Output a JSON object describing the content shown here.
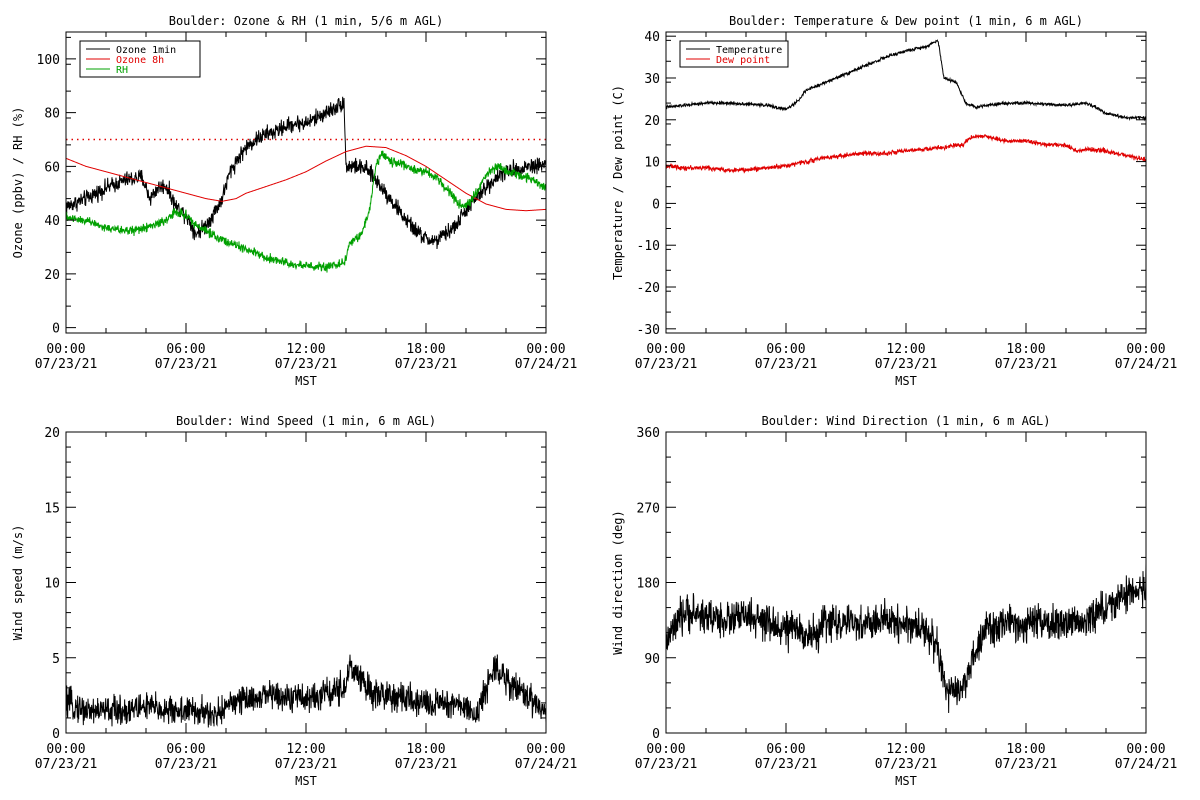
{
  "chart_data": [
    {
      "type": "line",
      "title": "Boulder: Ozone & RH (1 min, 5/6 m AGL)",
      "xlabel": "MST",
      "ylabel": "Ozone (ppbv) / RH (%)",
      "x_ticks": [
        {
          "time": "00:00",
          "date": "07/23/21"
        },
        {
          "time": "06:00",
          "date": "07/23/21"
        },
        {
          "time": "12:00",
          "date": "07/23/21"
        },
        {
          "time": "18:00",
          "date": "07/23/21"
        },
        {
          "time": "00:00",
          "date": "07/24/21"
        }
      ],
      "xlim_hours": [
        0,
        24
      ],
      "ylim": [
        -2,
        110
      ],
      "y_ticks": [
        0,
        20,
        40,
        60,
        80,
        100
      ],
      "legend_position": "top-left",
      "threshold_line": {
        "value": 70,
        "color": "#e00000",
        "style": "dotted"
      },
      "series": [
        {
          "name": "Ozone 1min",
          "color": "#000000",
          "noise": 2.8,
          "points": [
            [
              0,
              45
            ],
            [
              1,
              48
            ],
            [
              2,
              52
            ],
            [
              3,
              55
            ],
            [
              3.8,
              56
            ],
            [
              4.2,
              48
            ],
            [
              4.6,
              52
            ],
            [
              5,
              53
            ],
            [
              5.5,
              45
            ],
            [
              6,
              42
            ],
            [
              6.5,
              35
            ],
            [
              7,
              38
            ],
            [
              7.5,
              44
            ],
            [
              7.8,
              48
            ],
            [
              8.2,
              58
            ],
            [
              8.6,
              63
            ],
            [
              9,
              67
            ],
            [
              9.5,
              70
            ],
            [
              10,
              72
            ],
            [
              10.5,
              73
            ],
            [
              11,
              75
            ],
            [
              11.5,
              76
            ],
            [
              12,
              76
            ],
            [
              12.5,
              78
            ],
            [
              13,
              80
            ],
            [
              13.5,
              82
            ],
            [
              13.9,
              84
            ],
            [
              14,
              60
            ],
            [
              14.5,
              60
            ],
            [
              15,
              59
            ],
            [
              15.5,
              55
            ],
            [
              16,
              50
            ],
            [
              16.5,
              45
            ],
            [
              17,
              40
            ],
            [
              17.5,
              36
            ],
            [
              18,
              33
            ],
            [
              18.5,
              32
            ],
            [
              19,
              35
            ],
            [
              19.5,
              38
            ],
            [
              20,
              44
            ],
            [
              20.5,
              48
            ],
            [
              21,
              52
            ],
            [
              21.5,
              56
            ],
            [
              22,
              58
            ],
            [
              22.5,
              59
            ],
            [
              23,
              60
            ],
            [
              24,
              61
            ]
          ]
        },
        {
          "name": "Ozone 8h",
          "color": "#e00000",
          "noise": 0,
          "points": [
            [
              0,
              63
            ],
            [
              1,
              60
            ],
            [
              2,
              58
            ],
            [
              3,
              56
            ],
            [
              4,
              54
            ],
            [
              5,
              52
            ],
            [
              6,
              50
            ],
            [
              7,
              48
            ],
            [
              7.8,
              47
            ],
            [
              8.5,
              48
            ],
            [
              9,
              50
            ],
            [
              10,
              52.5
            ],
            [
              11,
              55
            ],
            [
              12,
              58
            ],
            [
              13,
              62
            ],
            [
              14,
              65.5
            ],
            [
              15,
              67.5
            ],
            [
              16,
              67
            ],
            [
              17,
              64
            ],
            [
              18,
              60
            ],
            [
              19,
              55
            ],
            [
              20,
              50
            ],
            [
              21,
              46
            ],
            [
              22,
              44
            ],
            [
              23,
              43.5
            ],
            [
              24,
              44
            ]
          ]
        },
        {
          "name": "RH",
          "color": "#00a000",
          "noise": 1.6,
          "points": [
            [
              0,
              41
            ],
            [
              1,
              40
            ],
            [
              2,
              37
            ],
            [
              3,
              36
            ],
            [
              4,
              37
            ],
            [
              5,
              40
            ],
            [
              5.5,
              43
            ],
            [
              6,
              42
            ],
            [
              6.5,
              38
            ],
            [
              7,
              36
            ],
            [
              7.5,
              34
            ],
            [
              8,
              32
            ],
            [
              9,
              29
            ],
            [
              10,
              26
            ],
            [
              11,
              24
            ],
            [
              12,
              23
            ],
            [
              13,
              22.5
            ],
            [
              13.9,
              24
            ],
            [
              14.2,
              32
            ],
            [
              14.8,
              35
            ],
            [
              15.2,
              45
            ],
            [
              15.5,
              60
            ],
            [
              15.8,
              65
            ],
            [
              16.2,
              62
            ],
            [
              17,
              60
            ],
            [
              18,
              58
            ],
            [
              18.5,
              56
            ],
            [
              19,
              52
            ],
            [
              19.5,
              47
            ],
            [
              20,
              45
            ],
            [
              20.5,
              50
            ],
            [
              21,
              57
            ],
            [
              21.5,
              60
            ],
            [
              22,
              59
            ],
            [
              22.5,
              57
            ],
            [
              23,
              56
            ],
            [
              24,
              52
            ]
          ]
        }
      ]
    },
    {
      "type": "line",
      "title": "Boulder: Temperature & Dew point (1 min, 6 m AGL)",
      "xlabel": "MST",
      "ylabel": "Temperature / Dew point (C)",
      "x_ticks": [
        {
          "time": "00:00",
          "date": "07/23/21"
        },
        {
          "time": "06:00",
          "date": "07/23/21"
        },
        {
          "time": "12:00",
          "date": "07/23/21"
        },
        {
          "time": "18:00",
          "date": "07/23/21"
        },
        {
          "time": "00:00",
          "date": "07/24/21"
        }
      ],
      "xlim_hours": [
        0,
        24
      ],
      "ylim": [
        -31,
        41
      ],
      "y_ticks": [
        -30,
        -20,
        -10,
        0,
        10,
        20,
        30,
        40
      ],
      "legend_position": "top-left",
      "series": [
        {
          "name": "Temperature",
          "color": "#000000",
          "noise": 0.35,
          "points": [
            [
              0,
              23
            ],
            [
              1,
              23.5
            ],
            [
              2,
              24
            ],
            [
              3,
              24
            ],
            [
              4,
              23.8
            ],
            [
              5,
              23.5
            ],
            [
              6,
              22.5
            ],
            [
              6.5,
              24
            ],
            [
              7,
              27
            ],
            [
              7.5,
              28
            ],
            [
              8,
              29
            ],
            [
              9,
              31
            ],
            [
              10,
              33
            ],
            [
              11,
              35
            ],
            [
              12,
              36.5
            ],
            [
              13,
              37.5
            ],
            [
              13.6,
              39
            ],
            [
              13.9,
              30
            ],
            [
              14.5,
              29
            ],
            [
              15,
              24
            ],
            [
              15.5,
              23
            ],
            [
              16,
              23.5
            ],
            [
              17,
              24
            ],
            [
              18,
              24
            ],
            [
              19,
              23.8
            ],
            [
              20,
              23.5
            ],
            [
              21,
              24
            ],
            [
              21.5,
              23
            ],
            [
              22,
              21.5
            ],
            [
              23,
              20.5
            ],
            [
              24,
              20.5
            ]
          ]
        },
        {
          "name": "Dew point",
          "color": "#e00000",
          "noise": 0.5,
          "points": [
            [
              0,
              9
            ],
            [
              1,
              8.5
            ],
            [
              2,
              8.5
            ],
            [
              3,
              8
            ],
            [
              4,
              8
            ],
            [
              5,
              8.5
            ],
            [
              6,
              9
            ],
            [
              7,
              10
            ],
            [
              8,
              11
            ],
            [
              9,
              11.5
            ],
            [
              10,
              12
            ],
            [
              11,
              12
            ],
            [
              12,
              12.5
            ],
            [
              13,
              13
            ],
            [
              14,
              13.5
            ],
            [
              14.8,
              14
            ],
            [
              15.3,
              16
            ],
            [
              16,
              16
            ],
            [
              17,
              15
            ],
            [
              18,
              15
            ],
            [
              19,
              14
            ],
            [
              20,
              14
            ],
            [
              20.5,
              12.5
            ],
            [
              21,
              13
            ],
            [
              22,
              12.5
            ],
            [
              23,
              11.5
            ],
            [
              24,
              10.5
            ]
          ]
        }
      ]
    },
    {
      "type": "line",
      "title": "Boulder: Wind Speed (1 min, 6 m AGL)",
      "xlabel": "MST",
      "ylabel": "Wind speed (m/s)",
      "x_ticks": [
        {
          "time": "00:00",
          "date": "07/23/21"
        },
        {
          "time": "06:00",
          "date": "07/23/21"
        },
        {
          "time": "12:00",
          "date": "07/23/21"
        },
        {
          "time": "18:00",
          "date": "07/23/21"
        },
        {
          "time": "00:00",
          "date": "07/24/21"
        }
      ],
      "xlim_hours": [
        0,
        24
      ],
      "ylim": [
        0,
        20
      ],
      "y_ticks": [
        0,
        5,
        10,
        15,
        20
      ],
      "series": [
        {
          "name": "",
          "color": "#000000",
          "noise": 0.9,
          "points": [
            [
              0,
              2
            ],
            [
              1,
              1.5
            ],
            [
              2,
              1.5
            ],
            [
              3,
              1.5
            ],
            [
              4,
              1.8
            ],
            [
              5,
              1.5
            ],
            [
              6,
              1.5
            ],
            [
              7,
              1.3
            ],
            [
              7.5,
              1
            ],
            [
              8,
              2
            ],
            [
              9,
              2.2
            ],
            [
              10,
              2.5
            ],
            [
              11,
              2.5
            ],
            [
              12,
              2.3
            ],
            [
              13,
              2.5
            ],
            [
              14,
              3
            ],
            [
              14.2,
              4.5
            ],
            [
              15,
              3
            ],
            [
              16,
              2.5
            ],
            [
              17,
              2.2
            ],
            [
              18,
              2
            ],
            [
              19,
              2
            ],
            [
              20,
              1.8
            ],
            [
              20.5,
              1
            ],
            [
              21,
              3
            ],
            [
              21.5,
              4.5
            ],
            [
              22,
              3.5
            ],
            [
              23,
              2.5
            ],
            [
              24,
              1.5
            ]
          ]
        }
      ]
    },
    {
      "type": "line",
      "title": "Boulder: Wind Direction (1 min, 6 m AGL)",
      "xlabel": "MST",
      "ylabel": "Wind direction (deg)",
      "x_ticks": [
        {
          "time": "00:00",
          "date": "07/23/21"
        },
        {
          "time": "06:00",
          "date": "07/23/21"
        },
        {
          "time": "12:00",
          "date": "07/23/21"
        },
        {
          "time": "18:00",
          "date": "07/23/21"
        },
        {
          "time": "00:00",
          "date": "07/24/21"
        }
      ],
      "xlim_hours": [
        0,
        24
      ],
      "ylim": [
        0,
        360
      ],
      "y_ticks": [
        0,
        90,
        180,
        270,
        360
      ],
      "series": [
        {
          "name": "",
          "color": "#000000",
          "noise": 20,
          "points": [
            [
              0,
              110
            ],
            [
              1,
              145
            ],
            [
              2,
              140
            ],
            [
              3,
              135
            ],
            [
              4,
              140
            ],
            [
              5,
              130
            ],
            [
              6,
              125
            ],
            [
              7,
              120
            ],
            [
              7.5,
              115
            ],
            [
              8,
              135
            ],
            [
              9,
              130
            ],
            [
              10,
              130
            ],
            [
              11,
              135
            ],
            [
              12,
              130
            ],
            [
              13,
              125
            ],
            [
              13.6,
              100
            ],
            [
              14,
              50
            ],
            [
              14.5,
              45
            ],
            [
              15,
              65
            ],
            [
              15.5,
              95
            ],
            [
              16,
              125
            ],
            [
              17,
              130
            ],
            [
              18,
              130
            ],
            [
              19,
              130
            ],
            [
              20,
              130
            ],
            [
              21,
              135
            ],
            [
              22,
              150
            ],
            [
              23,
              165
            ],
            [
              24,
              175
            ]
          ]
        }
      ]
    }
  ]
}
